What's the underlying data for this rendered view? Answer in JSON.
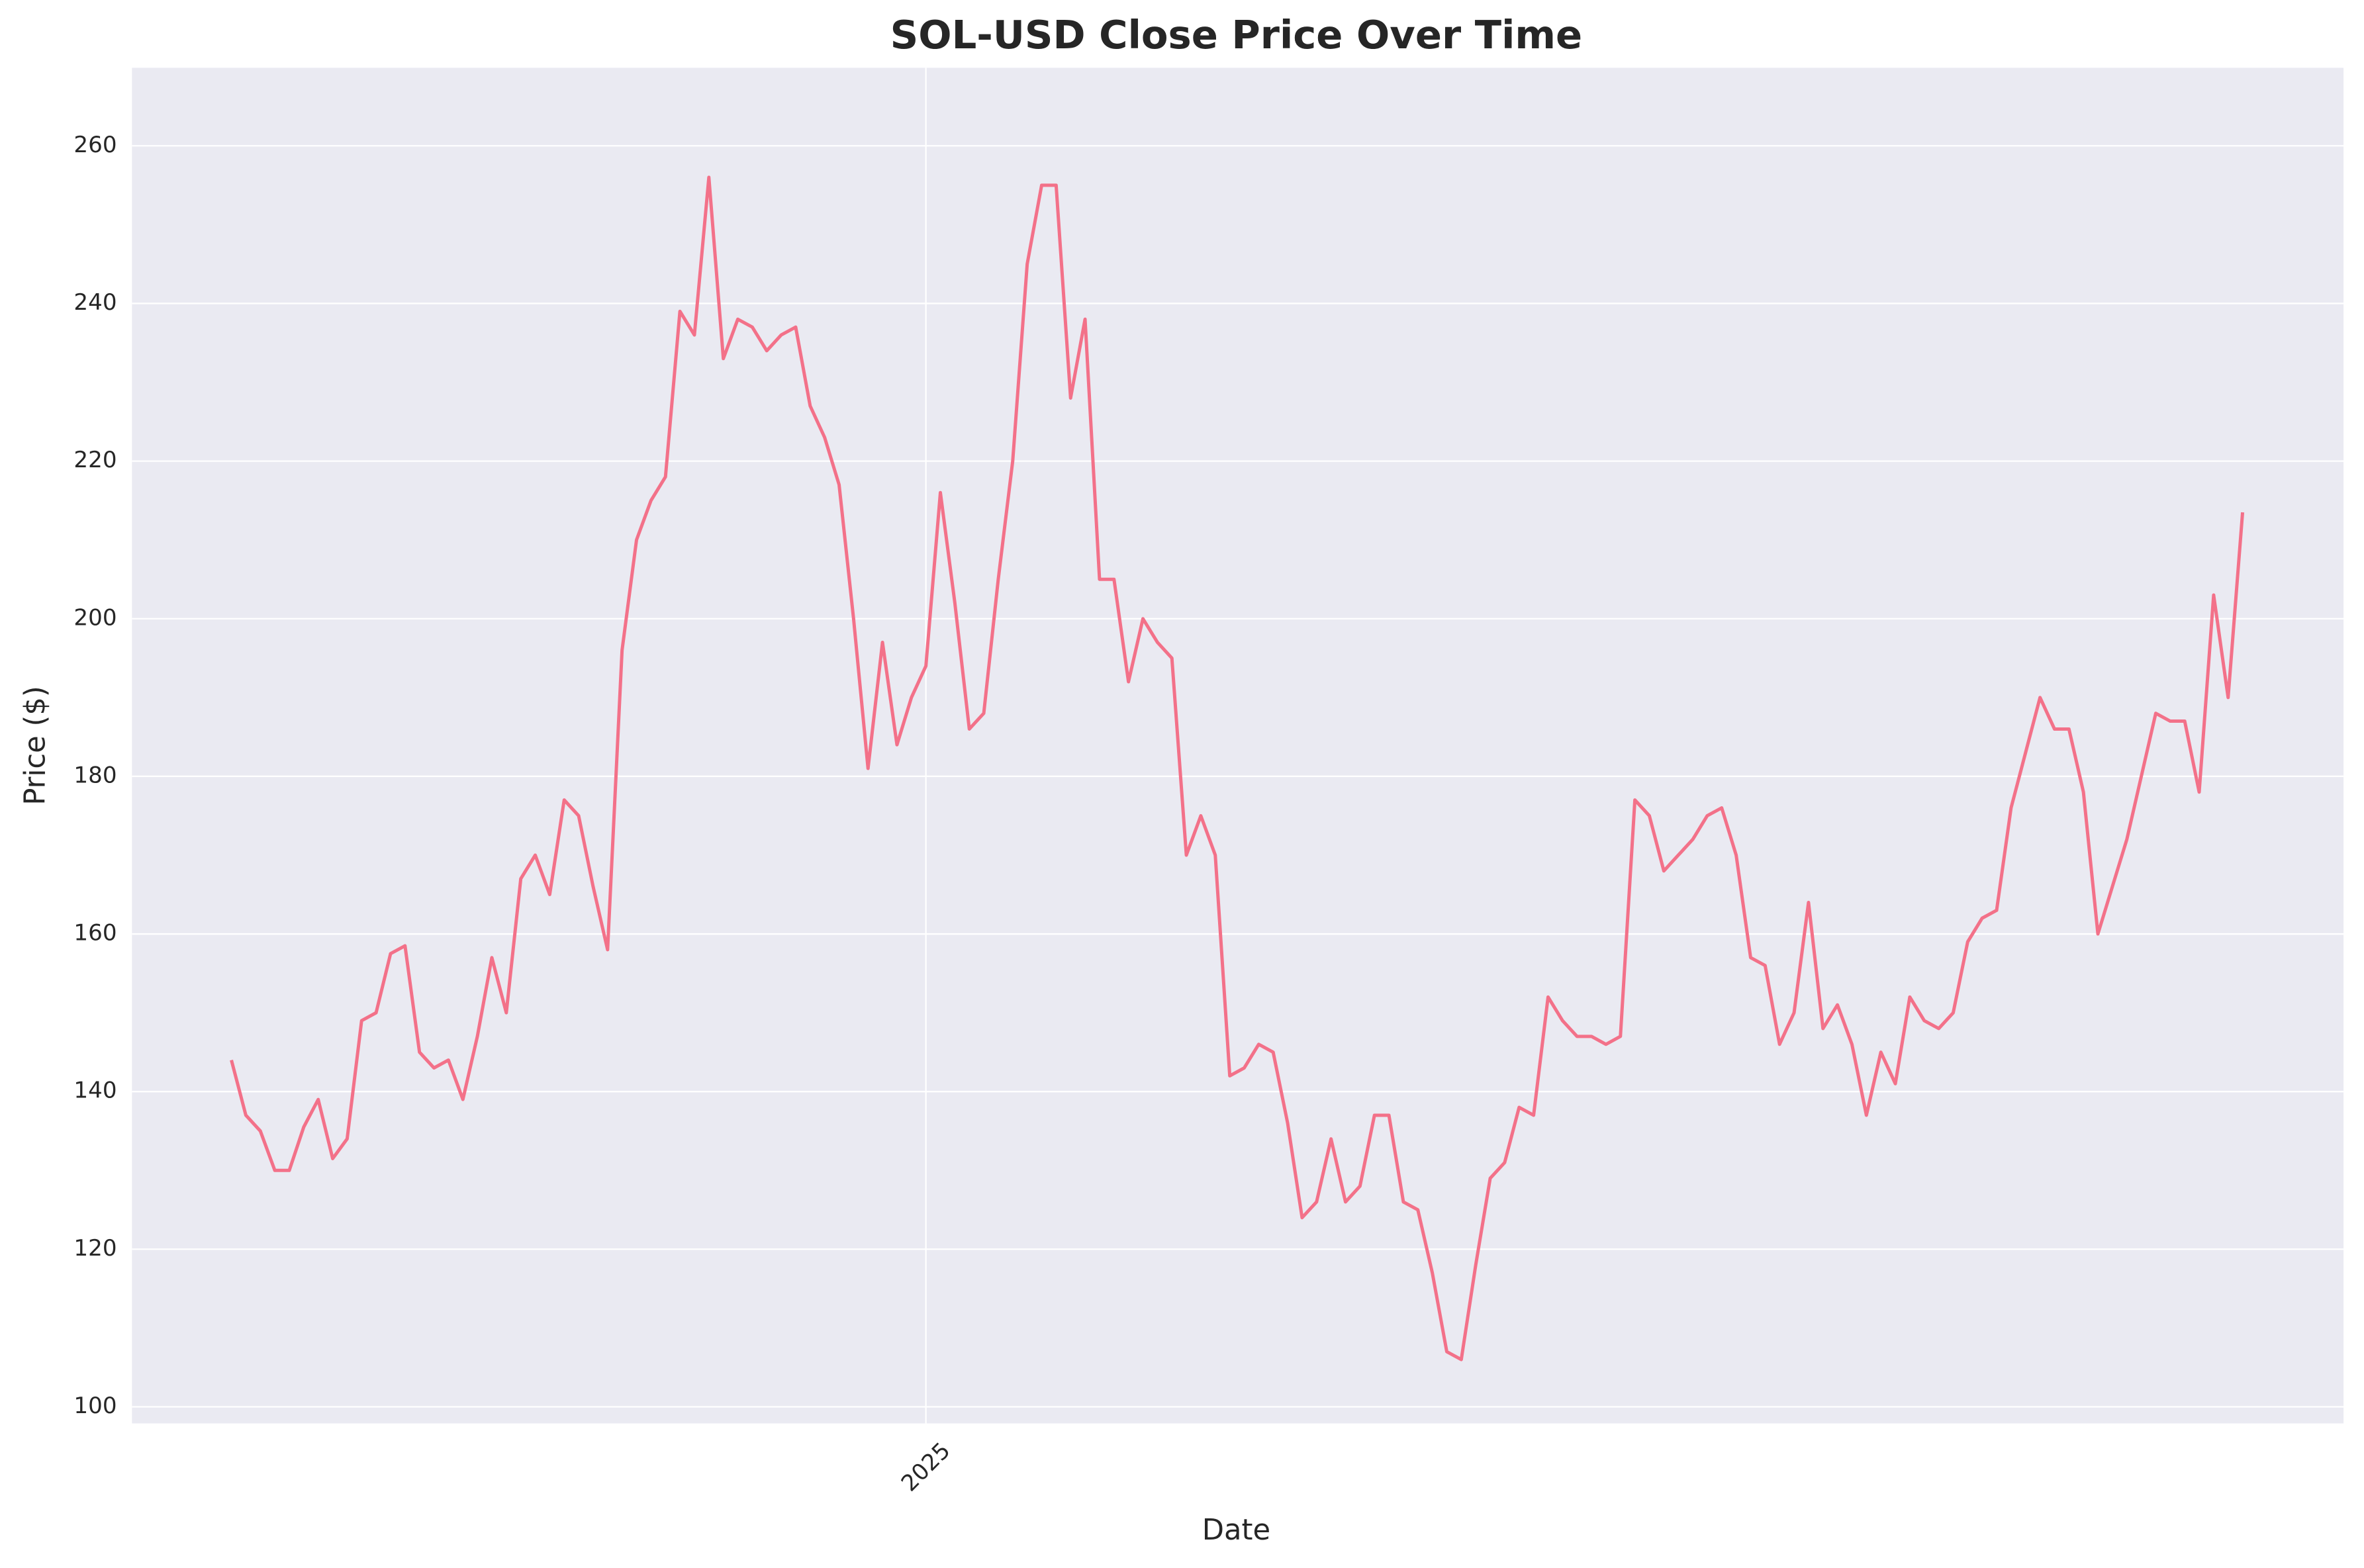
{
  "chart_data": {
    "type": "line",
    "title": "SOL-USD Close Price Over Time",
    "x_label": "Date",
    "y_label": "Price ($)",
    "categories": [
      null,
      null,
      null,
      null,
      null,
      null,
      null,
      null,
      null,
      null,
      null,
      null,
      null,
      null,
      null,
      null,
      null,
      null,
      null,
      null,
      null,
      null,
      null,
      null,
      null,
      null,
      null,
      null,
      null,
      null,
      null,
      null,
      null,
      null,
      null,
      null,
      null,
      null,
      null,
      null,
      null,
      null,
      null,
      null,
      null,
      null,
      null,
      null,
      "2025",
      null,
      null,
      null,
      null,
      null,
      null,
      null,
      null,
      null,
      null,
      null,
      null,
      null,
      null,
      null,
      null,
      null,
      null,
      null,
      null,
      null,
      null,
      null,
      null,
      null,
      null,
      null,
      null,
      null,
      null,
      null,
      null,
      null,
      null,
      null,
      null,
      null,
      null,
      null,
      null,
      null,
      null,
      null,
      null,
      null,
      null,
      null,
      null,
      null,
      null,
      null,
      null,
      null,
      null,
      null,
      null,
      null,
      null,
      null,
      null,
      null,
      null,
      null,
      null,
      null,
      null,
      null,
      null,
      null,
      null,
      null,
      null,
      null,
      null,
      null,
      null,
      null,
      null,
      null,
      null,
      null,
      null,
      null,
      null,
      null,
      null,
      null,
      null,
      null,
      null,
      null
    ],
    "series": [
      {
        "color": "#f37189",
        "values": [
          144,
          137,
          135,
          130,
          130,
          135.5,
          139,
          131.5,
          134,
          149,
          150,
          157.5,
          158.5,
          145,
          143,
          144,
          139,
          147,
          157,
          150,
          167,
          170,
          165,
          177,
          175,
          166,
          158,
          196,
          210,
          215,
          218,
          239,
          236,
          256,
          233,
          238,
          237,
          234,
          236,
          237,
          227,
          223,
          217,
          200,
          181,
          197,
          184,
          190,
          194,
          216,
          202,
          186,
          188,
          205,
          220,
          245,
          255,
          255,
          228,
          238,
          205,
          205,
          192,
          200,
          197,
          195,
          170,
          175,
          170,
          142,
          143,
          146,
          145,
          136,
          124,
          126,
          134,
          126,
          128,
          137,
          137,
          126,
          125,
          117,
          107,
          106,
          118,
          129,
          131,
          138,
          137,
          152,
          149,
          147,
          147,
          146,
          147,
          177,
          175,
          168,
          170,
          172,
          175,
          176,
          170,
          157,
          156,
          146,
          150,
          164,
          148,
          151,
          146,
          137,
          145,
          141,
          152,
          149,
          148,
          150,
          159,
          162,
          163,
          176,
          183,
          190,
          186,
          186,
          178,
          160,
          166,
          172,
          180,
          188,
          187,
          187,
          178,
          203,
          190,
          213.5
        ]
      }
    ],
    "ylim": [
      97.9,
      269.9
    ],
    "yticks": [
      100,
      120,
      140,
      160,
      180,
      200,
      220,
      240,
      260
    ],
    "grid": true
  }
}
